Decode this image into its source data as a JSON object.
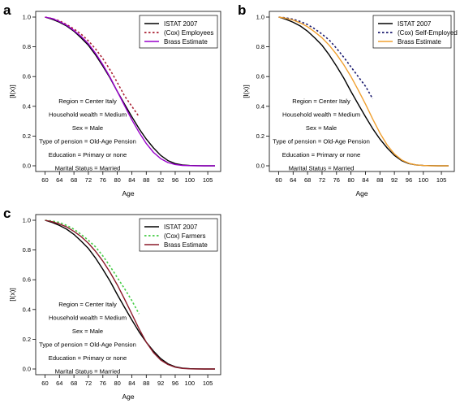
{
  "panels": [
    {
      "letter": "a",
      "chart_data": {
        "type": "line",
        "xlabel": "Age",
        "ylabel": "[l(x)]",
        "xlim": [
          59,
          107
        ],
        "ylim": [
          0,
          1.0
        ],
        "xticks": [
          "60",
          "64",
          "68",
          "72",
          "76",
          "80",
          "84",
          "88",
          "92",
          "96",
          "100",
          "105"
        ],
        "yticks": [
          "0.0",
          "0.2",
          "0.4",
          "0.6",
          "0.8",
          "1.0"
        ],
        "legend_position": "top-right",
        "annotations": [
          "Region = Center Italy",
          "Household wealth = Medium",
          "Sex = Male",
          "Type of pension = Old-Age Pension",
          "Education = Primary or none",
          "Marital Status = Married"
        ],
        "series": [
          {
            "name": "ISTAT 2007",
            "color": "#000000",
            "style": "solid",
            "x": [
              60,
              62,
              64,
              66,
              68,
              70,
              72,
              74,
              76,
              78,
              80,
              82,
              84,
              86,
              88,
              90,
              92,
              94,
              96,
              98,
              100,
              102,
              104,
              107
            ],
            "y": [
              1.0,
              0.985,
              0.965,
              0.94,
              0.905,
              0.86,
              0.81,
              0.745,
              0.67,
              0.59,
              0.5,
              0.415,
              0.33,
              0.25,
              0.18,
              0.12,
              0.07,
              0.035,
              0.015,
              0.006,
              0.002,
              0.001,
              0.0,
              0.0
            ]
          },
          {
            "name": "(Cox) Employees",
            "color": "#aa2233",
            "style": "dotted",
            "x": [
              60,
              62,
              64,
              66,
              68,
              70,
              72,
              74,
              76,
              78,
              80,
              82,
              84,
              86
            ],
            "y": [
              1.0,
              0.99,
              0.975,
              0.95,
              0.92,
              0.885,
              0.84,
              0.785,
              0.72,
              0.645,
              0.56,
              0.47,
              0.4,
              0.33
            ]
          },
          {
            "name": "Brass Estimate",
            "color": "#9900cc",
            "style": "solid",
            "x": [
              60,
              62,
              64,
              66,
              68,
              70,
              72,
              74,
              76,
              78,
              80,
              82,
              84,
              86,
              88,
              90,
              92,
              94,
              96,
              98,
              100,
              102,
              104,
              107
            ],
            "y": [
              1.0,
              0.99,
              0.97,
              0.945,
              0.91,
              0.87,
              0.82,
              0.755,
              0.68,
              0.595,
              0.5,
              0.405,
              0.31,
              0.225,
              0.15,
              0.09,
              0.048,
              0.022,
              0.009,
              0.003,
              0.001,
              0.0,
              0.0,
              0.0
            ]
          }
        ]
      }
    },
    {
      "letter": "b",
      "chart_data": {
        "type": "line",
        "xlabel": "Age",
        "ylabel": "[l(x)]",
        "xlim": [
          59,
          107
        ],
        "ylim": [
          0,
          1.0
        ],
        "xticks": [
          "60",
          "64",
          "68",
          "72",
          "76",
          "80",
          "84",
          "88",
          "92",
          "96",
          "100",
          "105"
        ],
        "yticks": [
          "0.0",
          "0.2",
          "0.4",
          "0.6",
          "0.8",
          "1.0"
        ],
        "legend_position": "top-right",
        "annotations": [
          "Region = Center Italy",
          "Household wealth = Medium",
          "Sex = Male",
          "Type of pension = Old-Age Pension",
          "Education = Primary or none",
          "Marital Status = Married"
        ],
        "series": [
          {
            "name": "ISTAT 2007",
            "color": "#000000",
            "style": "solid",
            "x": [
              60,
              62,
              64,
              66,
              68,
              70,
              72,
              74,
              76,
              78,
              80,
              82,
              84,
              86,
              88,
              90,
              92,
              94,
              96,
              98,
              100,
              102,
              104,
              107
            ],
            "y": [
              1.0,
              0.985,
              0.965,
              0.94,
              0.905,
              0.86,
              0.81,
              0.745,
              0.67,
              0.59,
              0.5,
              0.415,
              0.33,
              0.25,
              0.18,
              0.12,
              0.07,
              0.035,
              0.015,
              0.006,
              0.002,
              0.001,
              0.0,
              0.0
            ]
          },
          {
            "name": "(Cox) Self-Employed",
            "color": "#1a1a6e",
            "style": "dotted",
            "x": [
              60,
              62,
              64,
              66,
              68,
              70,
              72,
              74,
              76,
              78,
              80,
              82,
              84,
              86
            ],
            "y": [
              1.0,
              0.995,
              0.985,
              0.97,
              0.95,
              0.92,
              0.885,
              0.845,
              0.79,
              0.73,
              0.665,
              0.6,
              0.535,
              0.45
            ]
          },
          {
            "name": "Brass Estimate",
            "color": "#f0a030",
            "style": "solid",
            "x": [
              60,
              62,
              64,
              66,
              68,
              70,
              72,
              74,
              76,
              78,
              80,
              82,
              84,
              86,
              88,
              90,
              92,
              94,
              96,
              98,
              100,
              102,
              104,
              107
            ],
            "y": [
              1.0,
              0.992,
              0.98,
              0.96,
              0.935,
              0.9,
              0.86,
              0.81,
              0.75,
              0.68,
              0.6,
              0.51,
              0.415,
              0.315,
              0.22,
              0.14,
              0.08,
              0.04,
              0.017,
              0.006,
              0.002,
              0.0,
              0.0,
              0.0
            ]
          }
        ]
      }
    },
    {
      "letter": "c",
      "chart_data": {
        "type": "line",
        "xlabel": "Age",
        "ylabel": "[l(x)]",
        "xlim": [
          59,
          107
        ],
        "ylim": [
          0,
          1.0
        ],
        "xticks": [
          "60",
          "64",
          "68",
          "72",
          "76",
          "80",
          "84",
          "88",
          "92",
          "96",
          "100",
          "105"
        ],
        "yticks": [
          "0.0",
          "0.2",
          "0.4",
          "0.6",
          "0.8",
          "1.0"
        ],
        "legend_position": "top-right",
        "annotations": [
          "Region = Center Italy",
          "Household wealth = Medium",
          "Sex = Male",
          "Type of pension = Old-Age Pension",
          "Education = Primary or none",
          "Marital Status = Married"
        ],
        "series": [
          {
            "name": "ISTAT 2007",
            "color": "#000000",
            "style": "solid",
            "x": [
              60,
              62,
              64,
              66,
              68,
              70,
              72,
              74,
              76,
              78,
              80,
              82,
              84,
              86,
              88,
              90,
              92,
              94,
              96,
              98,
              100,
              102,
              104,
              107
            ],
            "y": [
              1.0,
              0.985,
              0.965,
              0.94,
              0.905,
              0.86,
              0.81,
              0.745,
              0.67,
              0.59,
              0.5,
              0.415,
              0.33,
              0.25,
              0.18,
              0.12,
              0.07,
              0.035,
              0.015,
              0.006,
              0.002,
              0.001,
              0.0,
              0.0
            ]
          },
          {
            "name": "(Cox) Farmers",
            "color": "#44cc44",
            "style": "dotted",
            "x": [
              60,
              62,
              64,
              66,
              68,
              70,
              72,
              74,
              76,
              78,
              80,
              82,
              84,
              86
            ],
            "y": [
              1.0,
              0.995,
              0.985,
              0.965,
              0.94,
              0.905,
              0.865,
              0.82,
              0.76,
              0.69,
              0.615,
              0.54,
              0.46,
              0.37
            ]
          },
          {
            "name": "Brass Estimate",
            "color": "#8b1a2a",
            "style": "solid",
            "x": [
              60,
              62,
              64,
              66,
              68,
              70,
              72,
              74,
              76,
              78,
              80,
              82,
              84,
              86,
              88,
              90,
              92,
              94,
              96,
              98,
              100,
              102,
              104,
              107
            ],
            "y": [
              1.0,
              0.99,
              0.975,
              0.955,
              0.925,
              0.89,
              0.845,
              0.79,
              0.725,
              0.65,
              0.565,
              0.47,
              0.37,
              0.27,
              0.18,
              0.11,
              0.06,
              0.03,
              0.012,
              0.004,
              0.001,
              0.0,
              0.0,
              0.0
            ]
          }
        ]
      }
    }
  ]
}
